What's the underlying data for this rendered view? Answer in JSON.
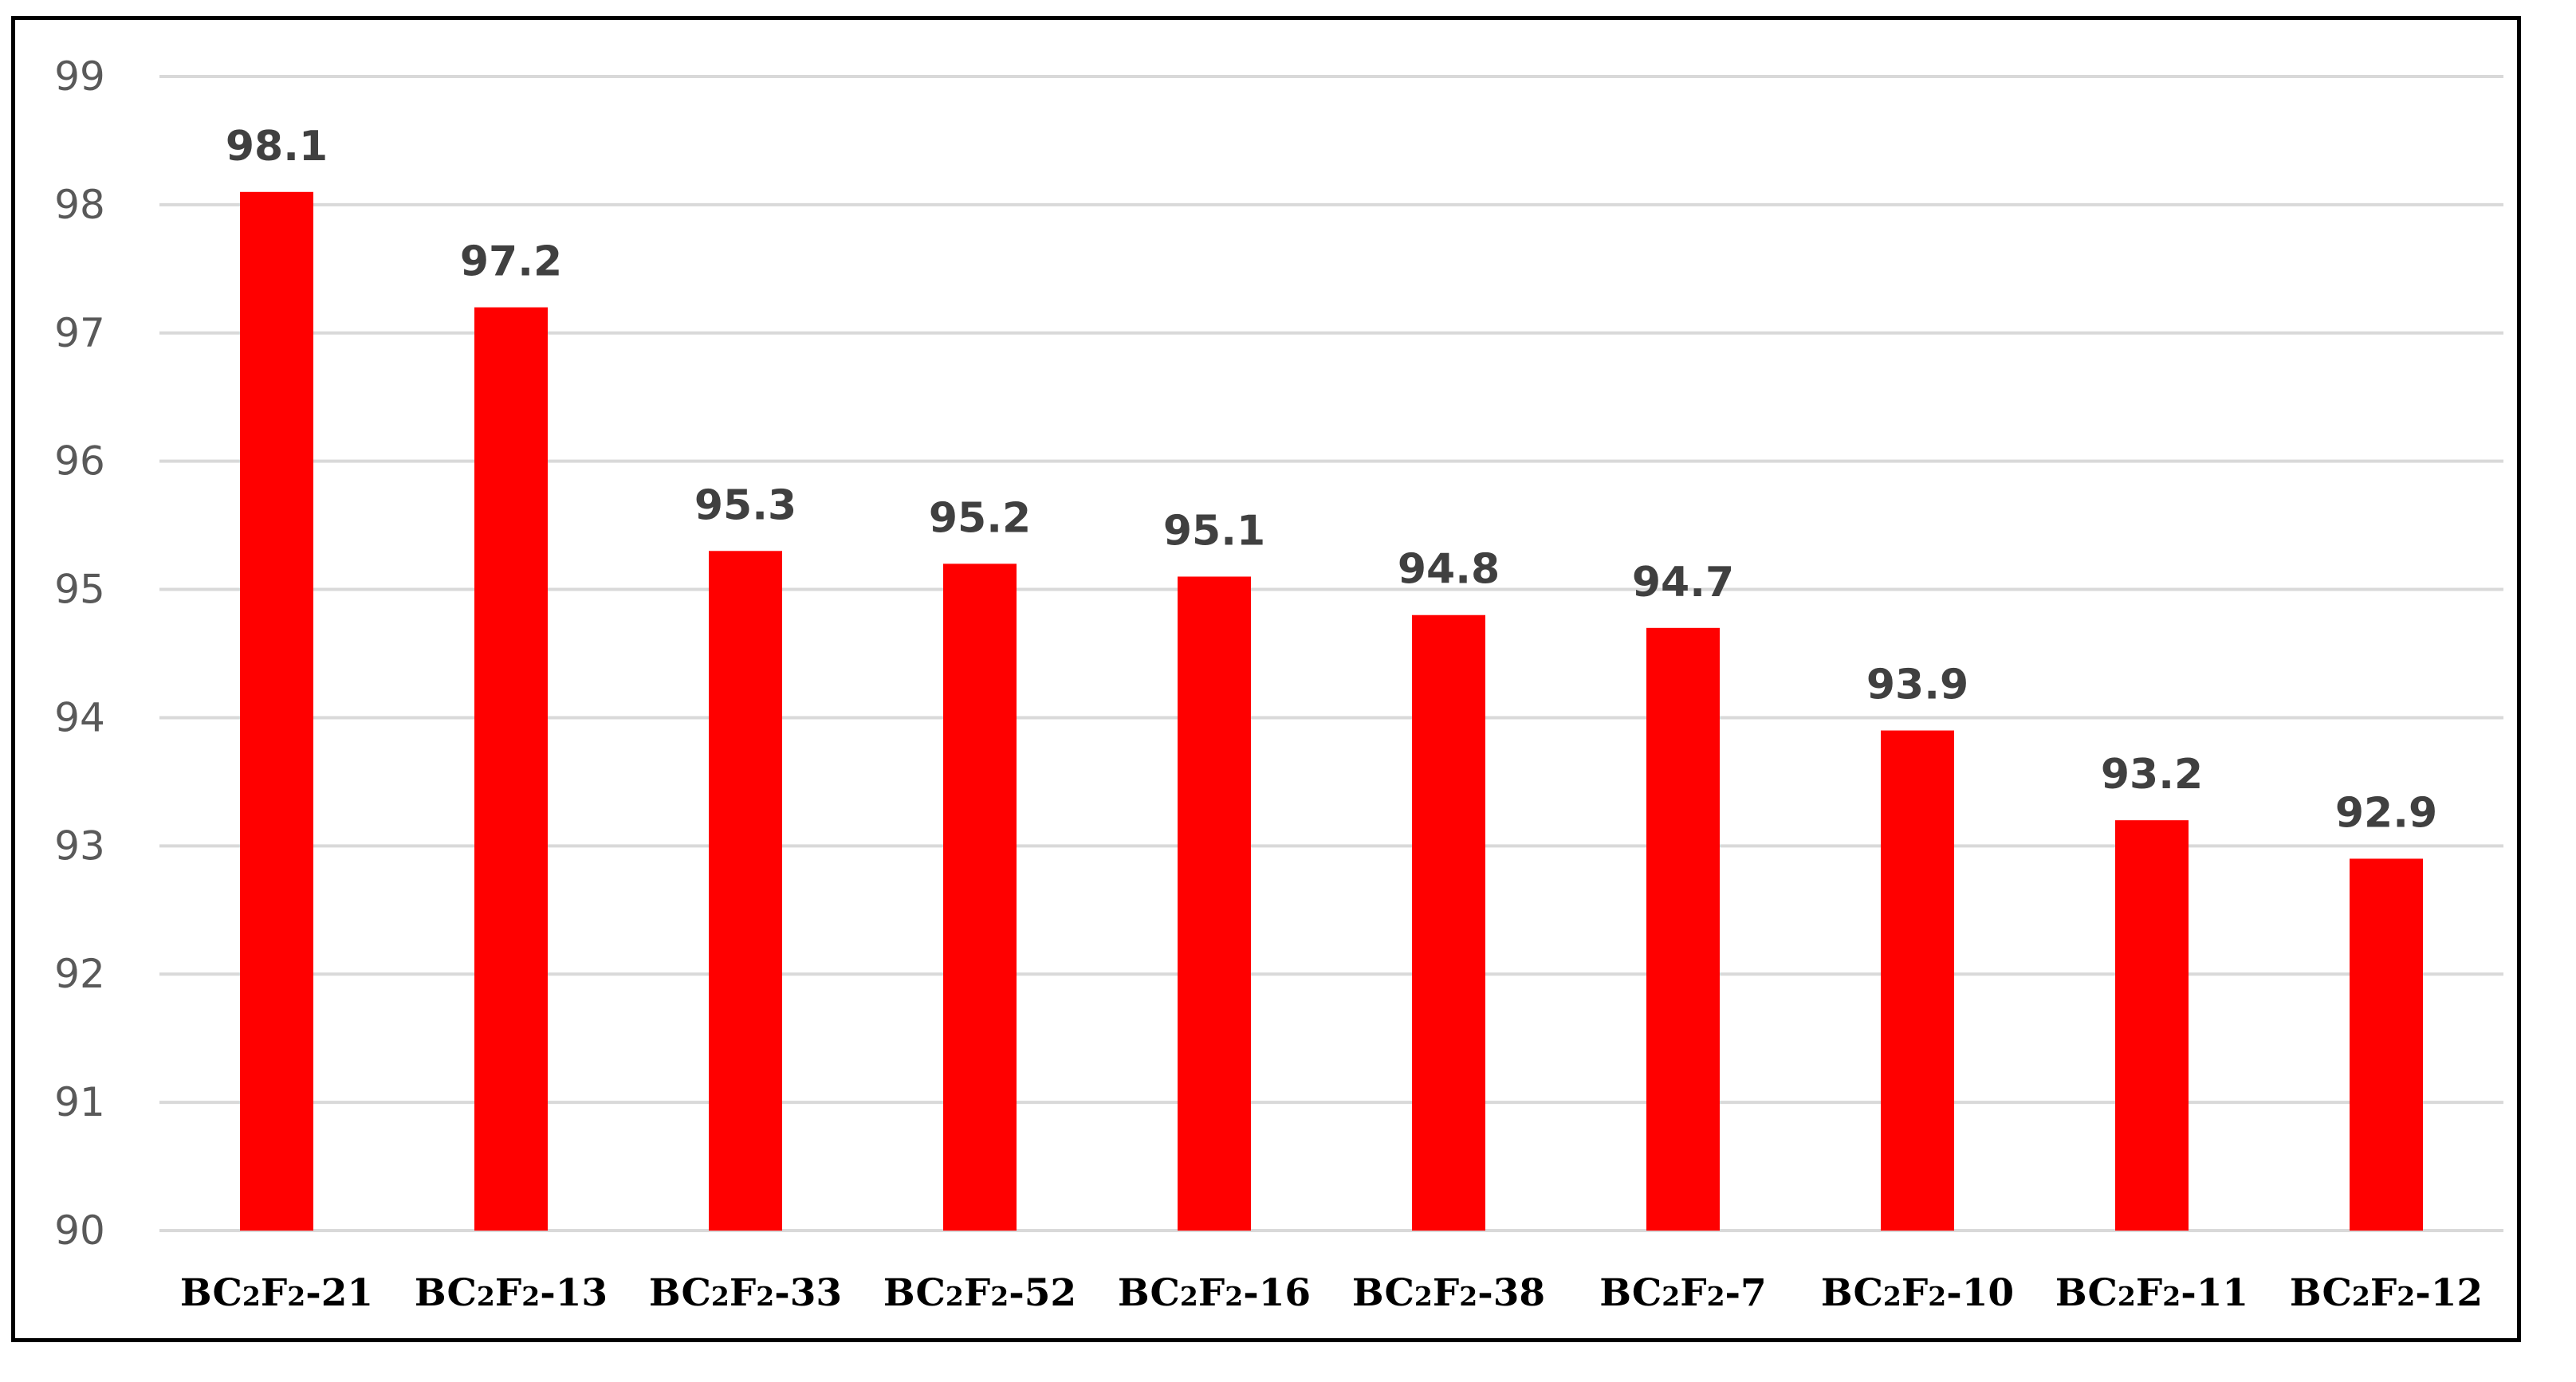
{
  "chart_data": {
    "type": "bar",
    "categories": [
      [
        "BC",
        "2",
        "F",
        "2",
        "-21"
      ],
      [
        "BC",
        "2",
        "F",
        "2",
        "-13"
      ],
      [
        "BC",
        "2",
        "F",
        "2",
        "-33"
      ],
      [
        "BC",
        "2",
        "F",
        "2",
        "-52"
      ],
      [
        "BC",
        "2",
        "F",
        "2",
        "-16"
      ],
      [
        "BC",
        "2",
        "F",
        "2",
        "-38"
      ],
      [
        "BC",
        "2",
        "F",
        "2",
        "-7"
      ],
      [
        "BC",
        "2",
        "F",
        "2",
        "-10"
      ],
      [
        "BC",
        "2",
        "F",
        "2",
        "-11"
      ],
      [
        "BC",
        "2",
        "F",
        "2",
        "-12"
      ]
    ],
    "values": [
      98.1,
      97.2,
      95.3,
      95.2,
      95.1,
      94.8,
      94.7,
      93.9,
      93.2,
      92.9
    ],
    "data_labels": [
      "98.1",
      "97.2",
      "95.3",
      "95.2",
      "95.1",
      "94.8",
      "94.7",
      "93.9",
      "93.2",
      "92.9"
    ],
    "y_ticks": [
      90,
      91,
      92,
      93,
      94,
      95,
      96,
      97,
      98,
      99
    ],
    "ylim": [
      90,
      99
    ],
    "grid": true,
    "legend": "none",
    "title": "",
    "xlabel": "",
    "ylabel": "",
    "colors": {
      "bar": "#ff0000",
      "grid": "#d9d9d9",
      "y_tick_text": "#595959",
      "data_label_text": "#404040",
      "x_tick_text": "#000000",
      "frame": "#000000"
    }
  }
}
